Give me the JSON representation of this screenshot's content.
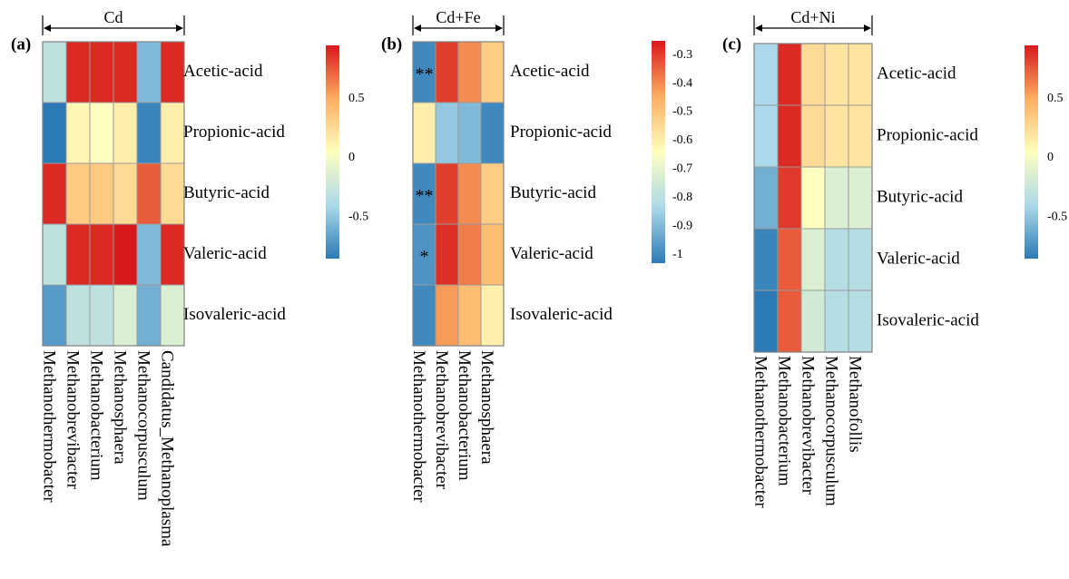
{
  "chart_data": [
    {
      "type": "heatmap",
      "panel_label": "(a)",
      "group_label": "Cd",
      "rows": [
        "Acetic-acid",
        "Propionic-acid",
        "Butyric-acid",
        "Valeric-acid",
        "Isovaleric-acid"
      ],
      "columns": [
        "Methanothermobacter",
        "Methanobrevibacter",
        "Methanobacterium",
        "Methanosphaera",
        "Methanocorpusculum",
        "Candidatus_Methanoplasma"
      ],
      "values": [
        [
          -0.3,
          0.9,
          0.9,
          0.9,
          -0.55,
          0.9
        ],
        [
          -0.9,
          0.1,
          0.05,
          0.15,
          -0.8,
          0.15
        ],
        [
          0.9,
          0.35,
          0.35,
          0.25,
          0.75,
          0.25
        ],
        [
          -0.3,
          0.9,
          0.9,
          0.95,
          -0.55,
          0.9
        ],
        [
          -0.7,
          -0.3,
          -0.3,
          -0.15,
          -0.6,
          -0.15
        ]
      ],
      "annotations": [
        [
          "",
          "",
          "",
          "",
          "",
          ""
        ],
        [
          "",
          "",
          "",
          "",
          "",
          ""
        ],
        [
          "",
          "",
          "",
          "",
          "",
          ""
        ],
        [
          "",
          "",
          "",
          "",
          "",
          ""
        ],
        [
          "",
          "",
          "",
          "",
          "",
          ""
        ]
      ],
      "colorbar": {
        "min": -0.85,
        "max": 0.95,
        "ticks": [
          0.5,
          0,
          -0.5
        ],
        "tick_labels": [
          "0.5",
          "0",
          "-0.5"
        ]
      }
    },
    {
      "type": "heatmap",
      "panel_label": "(b)",
      "group_label": "Cd+Fe",
      "rows": [
        "Acetic-acid",
        "Propionic-acid",
        "Butyric-acid",
        "Valeric-acid",
        "Isovaleric-acid"
      ],
      "columns": [
        "Methanothermobacter",
        "Methanobrevibacter",
        "Methanobacterium",
        "Methanosphaera"
      ],
      "values": [
        [
          -1.0,
          -0.3,
          -0.4,
          -0.52
        ],
        [
          -0.6,
          -0.87,
          -0.9,
          -1.0
        ],
        [
          -1.0,
          -0.3,
          -0.4,
          -0.52
        ],
        [
          -0.98,
          -0.28,
          -0.38,
          -0.48
        ],
        [
          -1.0,
          -0.42,
          -0.48,
          -0.6
        ]
      ],
      "annotations": [
        [
          "**",
          "",
          "",
          ""
        ],
        [
          "",
          "",
          "",
          ""
        ],
        [
          "**",
          "",
          "",
          ""
        ],
        [
          "*",
          "",
          "",
          ""
        ],
        [
          "",
          "",
          "",
          ""
        ]
      ],
      "colorbar": {
        "min": -1.03,
        "max": -0.25,
        "ticks": [
          -0.3,
          -0.4,
          -0.5,
          -0.6,
          -0.7,
          -0.8,
          -0.9,
          -1
        ],
        "tick_labels": [
          "-0.3",
          "-0.4",
          "-0.5",
          "-0.6",
          "-0.7",
          "-0.8",
          "-0.9",
          "-1"
        ]
      }
    },
    {
      "type": "heatmap",
      "panel_label": "(c)",
      "group_label": "Cd+Ni",
      "rows": [
        "Acetic-acid",
        "Propionic-acid",
        "Butyric-acid",
        "Valeric-acid",
        "Isovaleric-acid"
      ],
      "columns": [
        "Methanothermobacter",
        "Methanobacterium",
        "Methanobrevibacter",
        "Methanocorpusculum",
        "Methanofollis"
      ],
      "values": [
        [
          -0.4,
          0.9,
          0.25,
          0.2,
          0.2
        ],
        [
          -0.4,
          0.9,
          0.25,
          0.2,
          0.2
        ],
        [
          -0.6,
          0.85,
          0.05,
          -0.15,
          -0.15
        ],
        [
          -0.8,
          0.75,
          -0.15,
          -0.35,
          -0.35
        ],
        [
          -0.85,
          0.75,
          -0.2,
          -0.35,
          -0.35
        ]
      ],
      "annotations": [
        [
          "",
          "",
          "",
          "",
          ""
        ],
        [
          "",
          "",
          "",
          "",
          ""
        ],
        [
          "",
          "",
          "",
          "",
          ""
        ],
        [
          "",
          "",
          "",
          "",
          ""
        ],
        [
          "",
          "",
          "",
          "",
          ""
        ]
      ],
      "colorbar": {
        "min": -0.85,
        "max": 0.95,
        "ticks": [
          0.5,
          0,
          -0.5
        ],
        "tick_labels": [
          "0.5",
          "0",
          "-0.5"
        ]
      }
    }
  ],
  "colormap": [
    "#2c7bb6",
    "#abd9e9",
    "#ffffbf",
    "#fdae61",
    "#d7191c"
  ]
}
